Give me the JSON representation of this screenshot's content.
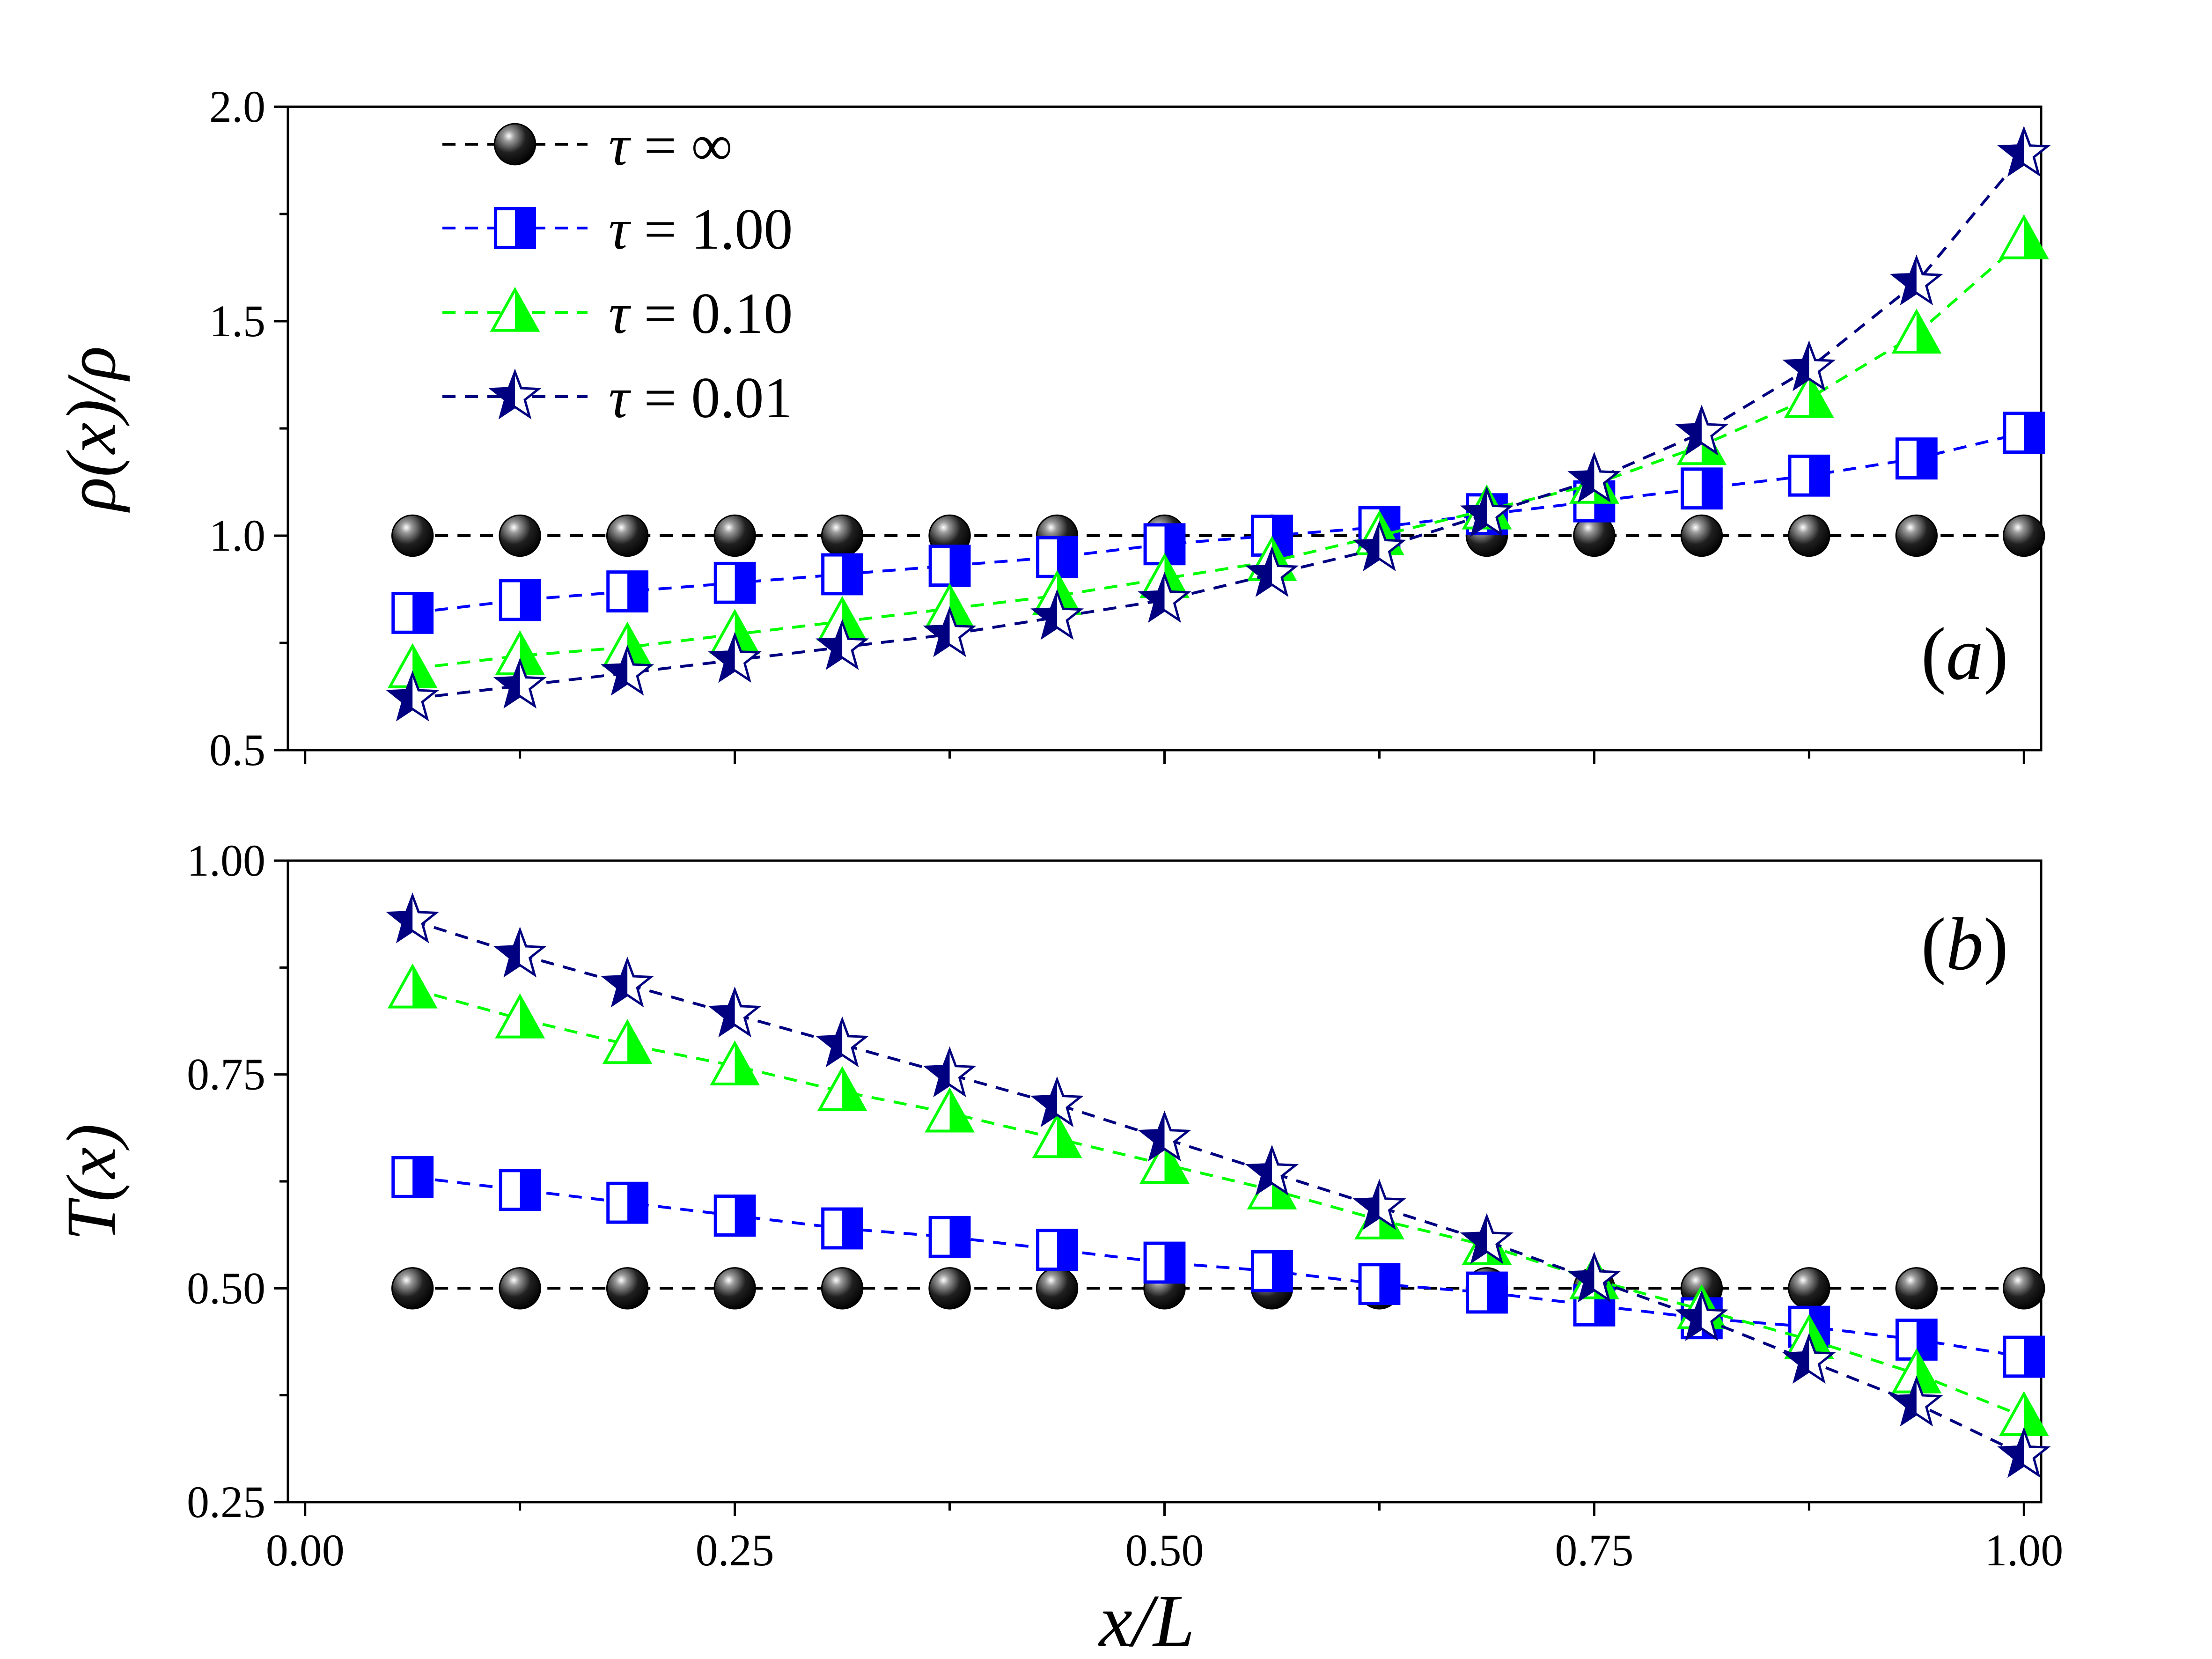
{
  "chart_data": [
    {
      "type": "line",
      "panel": "a",
      "panel_label": {
        "open": "(",
        "letter": "a",
        "close": ")"
      },
      "ylabel": "ρ(x)/ρ",
      "xlabel": "",
      "ylim": [
        0.5,
        2.0
      ],
      "xlim": [
        -0.01,
        1.01
      ],
      "y_ticks": [
        "0.5",
        "1.0",
        "1.5",
        "2.0"
      ],
      "legend_position": "top-left",
      "x": [
        0.0625,
        0.125,
        0.1875,
        0.25,
        0.3125,
        0.375,
        0.4375,
        0.5,
        0.5625,
        0.625,
        0.6875,
        0.75,
        0.8125,
        0.875,
        0.9375,
        1.0
      ],
      "series": [
        {
          "name": "τ = ∞",
          "symbol": "tau",
          "value_text": " = ∞",
          "color": "#000000",
          "marker": "ball",
          "values": [
            1.0,
            1.0,
            1.0,
            1.0,
            1.0,
            1.0,
            1.0,
            1.0,
            1.0,
            1.0,
            1.0,
            1.0,
            1.0,
            1.0,
            1.0,
            1.0
          ]
        },
        {
          "name": "τ = 1.00",
          "symbol": "tau",
          "value_text": " = 1.00",
          "color": "#0000ff",
          "marker": "half-square",
          "values": [
            0.82,
            0.85,
            0.87,
            0.89,
            0.91,
            0.93,
            0.95,
            0.98,
            1.0,
            1.02,
            1.05,
            1.08,
            1.11,
            1.14,
            1.18,
            1.24
          ]
        },
        {
          "name": "τ = 0.10",
          "symbol": "tau",
          "value_text": " = 0.10",
          "color": "#00ff00",
          "marker": "half-triangle",
          "values": [
            0.69,
            0.72,
            0.74,
            0.77,
            0.8,
            0.83,
            0.86,
            0.9,
            0.94,
            1.0,
            1.06,
            1.12,
            1.21,
            1.32,
            1.47,
            1.69
          ]
        },
        {
          "name": "τ = 0.01",
          "symbol": "tau",
          "value_text": " = 0.01",
          "color": "#000080",
          "marker": "half-star",
          "values": [
            0.62,
            0.65,
            0.68,
            0.71,
            0.74,
            0.77,
            0.81,
            0.85,
            0.91,
            0.97,
            1.05,
            1.13,
            1.24,
            1.39,
            1.59,
            1.89
          ]
        }
      ]
    },
    {
      "type": "line",
      "panel": "b",
      "panel_label": {
        "open": "(",
        "letter": "b",
        "close": ")"
      },
      "ylabel": "T(x)",
      "xlabel": "x/L",
      "ylim": [
        0.25,
        1.0
      ],
      "xlim": [
        -0.01,
        1.01
      ],
      "y_ticks": [
        "0.25",
        "0.50",
        "0.75",
        "1.00"
      ],
      "x_ticks": [
        "0.00",
        "0.25",
        "0.50",
        "0.75",
        "1.00"
      ],
      "x": [
        0.0625,
        0.125,
        0.1875,
        0.25,
        0.3125,
        0.375,
        0.4375,
        0.5,
        0.5625,
        0.625,
        0.6875,
        0.75,
        0.8125,
        0.875,
        0.9375,
        1.0
      ],
      "series": [
        {
          "name": "τ = ∞",
          "color": "#000000",
          "marker": "ball",
          "values": [
            0.5,
            0.5,
            0.5,
            0.5,
            0.5,
            0.5,
            0.5,
            0.5,
            0.5,
            0.5,
            0.5,
            0.5,
            0.5,
            0.5,
            0.5,
            0.5
          ]
        },
        {
          "name": "τ = 1.00",
          "color": "#0000ff",
          "marker": "half-square",
          "values": [
            0.63,
            0.615,
            0.6,
            0.585,
            0.57,
            0.56,
            0.545,
            0.53,
            0.52,
            0.505,
            0.495,
            0.48,
            0.465,
            0.455,
            0.44,
            0.42
          ]
        },
        {
          "name": "τ = 0.10",
          "color": "#00ff00",
          "marker": "half-triangle",
          "values": [
            0.85,
            0.815,
            0.785,
            0.76,
            0.73,
            0.705,
            0.675,
            0.645,
            0.615,
            0.58,
            0.55,
            0.51,
            0.475,
            0.44,
            0.4,
            0.35
          ]
        },
        {
          "name": "τ = 0.01",
          "color": "#000080",
          "marker": "half-star",
          "values": [
            0.93,
            0.89,
            0.855,
            0.82,
            0.785,
            0.75,
            0.715,
            0.675,
            0.635,
            0.595,
            0.555,
            0.51,
            0.465,
            0.415,
            0.365,
            0.305
          ]
        }
      ]
    }
  ]
}
